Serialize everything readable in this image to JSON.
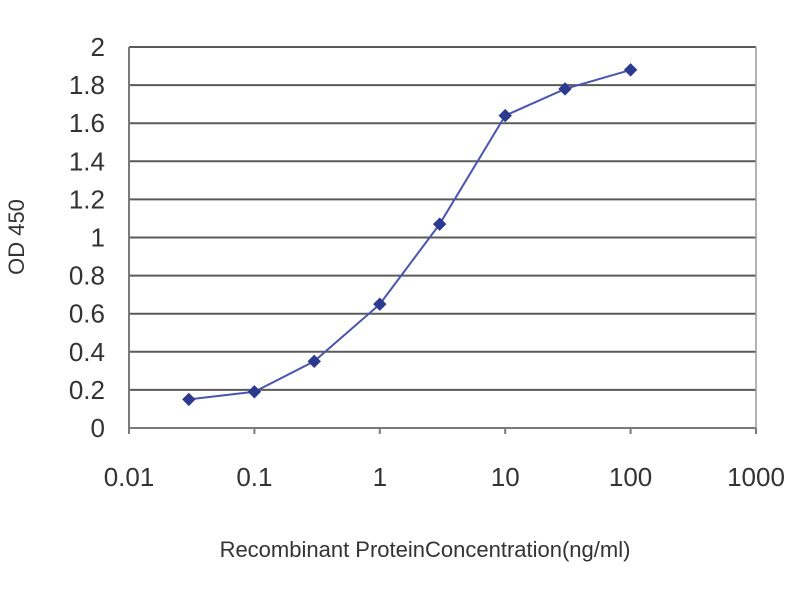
{
  "chart_data": {
    "type": "line",
    "xscale": "log",
    "xlabel": "Recombinant ProteinConcentration(ng/ml)",
    "ylabel": "OD 450",
    "xlim": [
      0.01,
      1000
    ],
    "ylim": [
      0,
      2
    ],
    "x_ticks": [
      "0.01",
      "0.1",
      "1",
      "10",
      "100",
      "1000"
    ],
    "y_ticks": [
      "0",
      "0.2",
      "0.4",
      "0.6",
      "0.8",
      "1",
      "1.2",
      "1.4",
      "1.6",
      "1.8",
      "2"
    ],
    "grid": true,
    "legend": "none",
    "series": [
      {
        "x": [
          0.03,
          0.1,
          0.3,
          1,
          3,
          10,
          30,
          100
        ],
        "y": [
          0.15,
          0.19,
          0.35,
          0.65,
          1.07,
          1.64,
          1.78,
          1.88
        ],
        "color": "#2b3a8f",
        "marker": "diamond"
      }
    ]
  }
}
